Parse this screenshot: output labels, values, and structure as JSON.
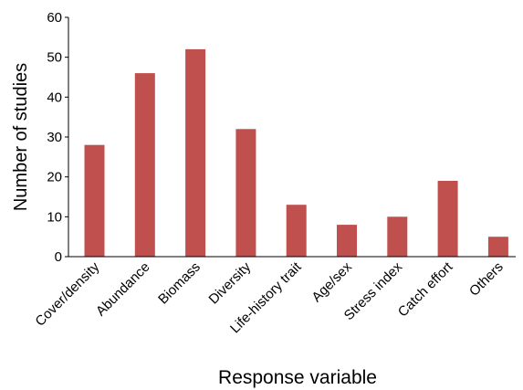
{
  "chart_data": {
    "type": "bar",
    "title": "",
    "xlabel": "Response variable",
    "ylabel": "Number of studies",
    "categories": [
      "Cover/density",
      "Abundance",
      "Biomass",
      "Diversity",
      "Life-history trait",
      "Age/sex",
      "Stress index",
      "Catch effort",
      "Others"
    ],
    "values": [
      28,
      46,
      52,
      32,
      13,
      8,
      10,
      19,
      5
    ],
    "ylim": [
      0,
      60
    ],
    "yticks": [
      0,
      10,
      20,
      30,
      40,
      50,
      60
    ],
    "grid": false,
    "legend": "none",
    "bar_color": "#c0504d"
  }
}
